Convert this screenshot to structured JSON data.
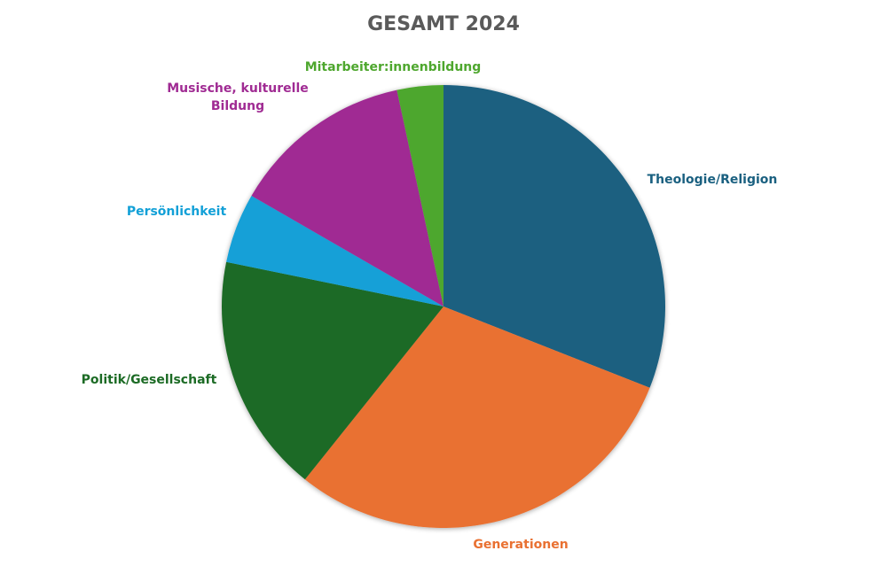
{
  "chart_data": {
    "type": "pie",
    "title": "GESAMT 2024",
    "start_angle_deg": 0,
    "direction": "clockwise",
    "slices": [
      {
        "label": "Theologie/Religion",
        "label_lines": [
          "Theologie/Religion"
        ],
        "value": 30.3,
        "color": "#1a6080"
      },
      {
        "label": "Generationen",
        "label_lines": [
          "Generationen"
        ],
        "value": 29.1,
        "color": "#e97132"
      },
      {
        "label": "Politik/Gesellschaft",
        "label_lines": [
          "Politik/Gesellschaft"
        ],
        "value": 17.1,
        "color": "#1c6b25"
      },
      {
        "label": "Persönlichkeit",
        "label_lines": [
          "Persönlichkeit"
        ],
        "value": 5.0,
        "color": "#12a0d7"
      },
      {
        "label": "Musische, kulturelle Bildung",
        "label_lines": [
          "Musische, kulturelle",
          "Bildung"
        ],
        "value": 13.0,
        "color": "#a02b93"
      },
      {
        "label": "Mitarbeiter:innenbildung",
        "label_lines": [
          "Mitarbeiter:innenbildung"
        ],
        "value": 3.3,
        "color": "#4ea72e"
      }
    ]
  }
}
